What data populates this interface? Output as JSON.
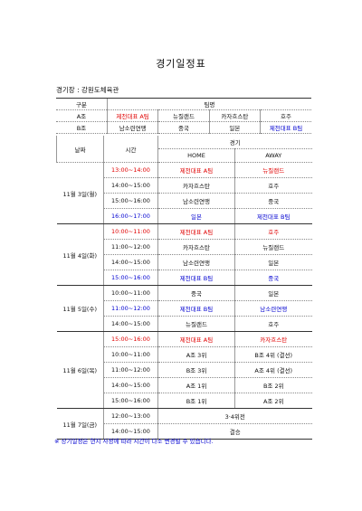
{
  "header": {
    "title": "경기일정표",
    "venue": "경기장 : 강원도체육관"
  },
  "groups": {
    "header": [
      "구분",
      "팀명"
    ],
    "rows": [
      {
        "label": "A조",
        "teams": [
          "제천대표 A팀",
          "뉴질랜드",
          "카자흐스탄",
          "호주"
        ],
        "highlight": [
          "red",
          null,
          null,
          null
        ]
      },
      {
        "label": "B조",
        "teams": [
          "남소련연맹",
          "중국",
          "일본",
          "제천대표 B팀"
        ],
        "highlight": [
          null,
          null,
          null,
          "blue"
        ]
      }
    ]
  },
  "schedule": {
    "header": {
      "date": "날짜",
      "time": "시간",
      "match": "경기",
      "home": "HOME",
      "away": "AWAY"
    },
    "days": [
      {
        "date": "11월 3일(월)",
        "rows": [
          {
            "time": "13:00~14:00",
            "home": "제천대표 A팀",
            "away": "뉴질랜드",
            "color": "red"
          },
          {
            "time": "14:00~15:00",
            "home": "카자흐스탄",
            "away": "호주"
          },
          {
            "time": "15:00~16:00",
            "home": "남소련연맹",
            "away": "중국"
          },
          {
            "time": "16:00~17:00",
            "home": "일본",
            "away": "제천대표 B팀",
            "color": "blue"
          }
        ]
      },
      {
        "date": "11월 4일(화)",
        "rows": [
          {
            "time": "10:00~11:00",
            "home": "제천대표 A팀",
            "away": "호주",
            "color": "red"
          },
          {
            "time": "11:00~12:00",
            "home": "카자흐스탄",
            "away": "뉴질랜드"
          },
          {
            "time": "14:00~15:00",
            "home": "남소련연맹",
            "away": "일본"
          },
          {
            "time": "15:00~16:00",
            "home": "제천대표 B팀",
            "away": "중국",
            "color": "blue"
          }
        ]
      },
      {
        "date": "11월 5일(수)",
        "rows": [
          {
            "time": "10:00~11:00",
            "home": "중국",
            "away": "일본"
          },
          {
            "time": "11:00~12:00",
            "home": "제천대표 B팀",
            "away": "남소련연맹",
            "color": "blue"
          },
          {
            "time": "14:00~15:00",
            "home": "뉴질랜드",
            "away": "호주"
          }
        ]
      },
      {
        "date": "11월 6일(목)",
        "rows": [
          {
            "time": "15:00~16:00",
            "home": "제천대표 A팀",
            "away": "카자흐스탄",
            "color": "red"
          },
          {
            "time": "10:00~11:00",
            "home": "A조 3위",
            "away": "B조 4위 (결선)"
          },
          {
            "time": "11:00~12:00",
            "home": "B조 3위",
            "away": "A조 4위 (결선)"
          },
          {
            "time": "14:00~15:00",
            "home": "A조 1위",
            "away": "B조 2위"
          },
          {
            "time": "15:00~16:00",
            "home": "B조 1위",
            "away": "A조 2위"
          }
        ]
      },
      {
        "date": "11월 7일(금)",
        "rows": [
          {
            "time": "12:00~13:00",
            "match": "3·4위전"
          },
          {
            "time": "14:00~15:00",
            "match": "결승"
          }
        ]
      }
    ]
  },
  "note": "※ 상기일정은 현지 사정에 따라 시간이 다소 변경될 수 있습니다."
}
